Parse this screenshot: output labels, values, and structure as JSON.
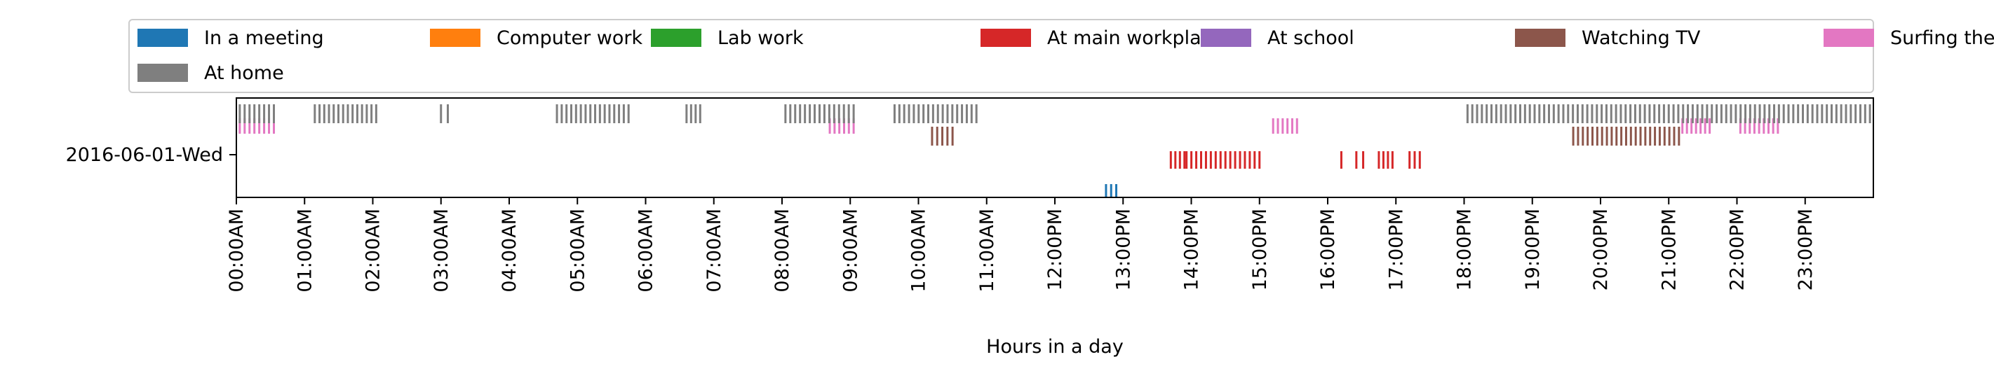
{
  "chart_data": {
    "type": "event-raster",
    "title": "",
    "xlabel": "Hours in a day",
    "ylabel": "",
    "category": "2016-06-01-Wed",
    "xlim": [
      0,
      24
    ],
    "x_tick_values": [
      0,
      1,
      2,
      3,
      4,
      5,
      6,
      7,
      8,
      9,
      10,
      11,
      12,
      13,
      14,
      15,
      16,
      17,
      18,
      19,
      20,
      21,
      22,
      23
    ],
    "x_tick_labels": [
      "00:00AM",
      "01:00AM",
      "02:00AM",
      "03:00AM",
      "04:00AM",
      "05:00AM",
      "06:00AM",
      "07:00AM",
      "08:00AM",
      "09:00AM",
      "10:00AM",
      "11:00AM",
      "12:00PM",
      "13:00PM",
      "14:00PM",
      "15:00PM",
      "16:00PM",
      "17:00PM",
      "18:00PM",
      "19:00PM",
      "20:00PM",
      "21:00PM",
      "22:00PM",
      "23:00PM"
    ],
    "legend_position": "top",
    "series": [
      {
        "name": "In a meeting",
        "color": "#1f77b4",
        "runs": [
          [
            12.75,
            12.9
          ]
        ]
      },
      {
        "name": "Computer work",
        "color": "#ff7f0e",
        "runs": []
      },
      {
        "name": "Lab work",
        "color": "#2ca02c",
        "runs": []
      },
      {
        "name": "At main workplace",
        "color": "#d62728",
        "runs": [
          [
            13.7,
            13.9
          ],
          [
            13.93,
            15.0
          ],
          [
            16.2,
            16.2
          ],
          [
            16.42,
            16.52
          ],
          [
            16.75,
            16.95
          ],
          [
            17.2,
            17.35
          ]
        ]
      },
      {
        "name": "At school",
        "color": "#9467bd",
        "runs": []
      },
      {
        "name": "Watching TV",
        "color": "#8c564b",
        "runs": [
          [
            10.2,
            10.5
          ],
          [
            19.6,
            21.15
          ]
        ]
      },
      {
        "name": "Surfing the internet",
        "color": "#e377c2",
        "runs": [
          [
            0.05,
            0.55
          ],
          [
            8.7,
            9.05
          ],
          [
            15.2,
            15.55
          ],
          [
            21.2,
            21.6
          ],
          [
            22.05,
            22.6
          ]
        ]
      },
      {
        "name": "At home",
        "color": "#7f7f7f",
        "runs": [
          [
            0.05,
            0.55
          ],
          [
            1.15,
            2.05
          ],
          [
            3.0,
            3.1
          ],
          [
            4.7,
            5.75
          ],
          [
            6.6,
            6.8
          ],
          [
            8.05,
            9.05
          ],
          [
            9.65,
            10.85
          ],
          [
            18.05,
            23.95
          ]
        ]
      }
    ]
  }
}
